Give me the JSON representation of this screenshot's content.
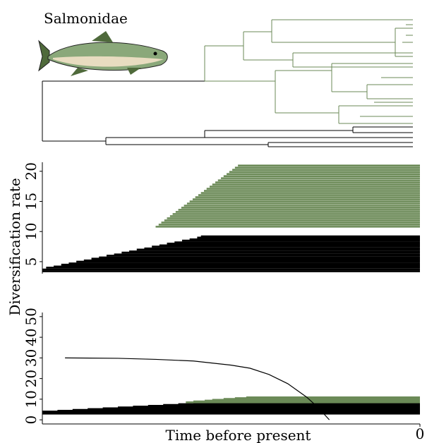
{
  "chart_data": [
    {
      "type": "tree",
      "title": "Salmonidae"
    },
    {
      "type": "segments",
      "ylabel": "Diversification rate",
      "xlim": [
        -100,
        0
      ],
      "ylim": [
        3,
        21.5
      ],
      "yticks": [
        5,
        10,
        15,
        20
      ],
      "series": [
        {
          "color": "#6b8a57",
          "x": [
            -70,
            -69.2,
            -68.5,
            -67.7,
            -67,
            -66.2,
            -65.5,
            -64.7,
            -64,
            -63.2,
            -62.5,
            -61.7,
            -61,
            -60.2,
            -59.5,
            -58.7,
            -58,
            -57.2,
            -56.5,
            -55.7,
            -55,
            -54.2,
            -53.5,
            -52.7,
            -52,
            -51.2,
            -50.5,
            -49.7,
            -49,
            -48.2
          ],
          "values": [
            10.8,
            11.15,
            11.5,
            11.85,
            12.2,
            12.55,
            12.9,
            13.25,
            13.6,
            13.95,
            14.3,
            14.65,
            15,
            15.35,
            15.7,
            16.05,
            16.4,
            16.75,
            17.1,
            17.45,
            17.8,
            18.15,
            18.5,
            18.85,
            19.2,
            19.55,
            19.9,
            20.25,
            20.6,
            20.95
          ]
        },
        {
          "color": "#000000",
          "x": [
            -100,
            -100,
            -99,
            -97,
            -95,
            -93,
            -91,
            -89,
            -87,
            -85,
            -83,
            -81,
            -79,
            -77,
            -75,
            -73,
            -71,
            -69,
            -67,
            -65,
            -63,
            -61,
            -59,
            -58
          ],
          "values": [
            3.4,
            3.7,
            4.0,
            4.2,
            4.5,
            4.7,
            5.0,
            5.2,
            5.5,
            5.7,
            6.0,
            6.2,
            6.5,
            6.7,
            7.0,
            7.2,
            7.5,
            7.7,
            8.0,
            8.2,
            8.5,
            8.7,
            9.0,
            9.2
          ]
        }
      ]
    },
    {
      "type": "segments",
      "xlabel": "Time before present",
      "xlim": [
        -100,
        0
      ],
      "xticks": [
        0
      ],
      "ylim": [
        -2,
        52
      ],
      "yticks": [
        0,
        10,
        20,
        30,
        40,
        50
      ],
      "series": [
        {
          "color": "#000000",
          "x": [
            -100,
            -100,
            -100,
            -100,
            -96,
            -92,
            -88,
            -84,
            -80,
            -76,
            -72,
            -68,
            -64,
            -60,
            -56
          ],
          "values": [
            3,
            3.4,
            3.7,
            4,
            4.4,
            4.8,
            5.2,
            5.6,
            6,
            6.4,
            6.8,
            7.2,
            7.6,
            8,
            8.4
          ]
        },
        {
          "color": "#6b8a57",
          "x": [
            -62,
            -60,
            -57,
            -55,
            -52,
            -49,
            -46
          ],
          "values": [
            8.5,
            8.9,
            9.3,
            9.7,
            10.1,
            10.5,
            10.9
          ]
        }
      ],
      "lines": [
        {
          "color": "#000000",
          "x": [
            -94,
            -80,
            -70,
            -60,
            -50,
            -45,
            -40,
            -35,
            -30,
            -27,
            -24
          ],
          "values": [
            30,
            29.8,
            29.3,
            28.5,
            26.5,
            25,
            22,
            17.5,
            11,
            6,
            0
          ]
        }
      ]
    }
  ]
}
